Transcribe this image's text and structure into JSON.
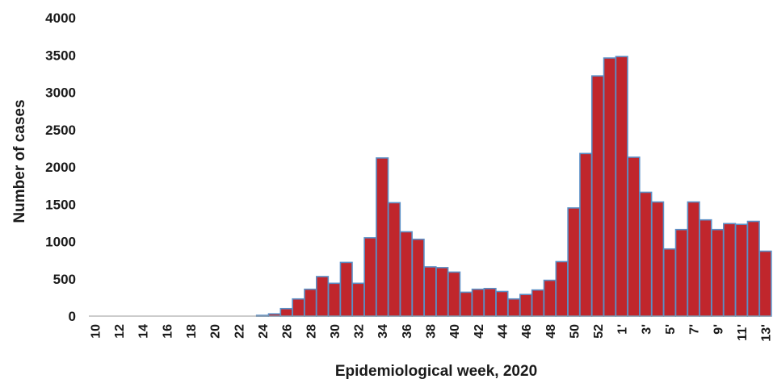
{
  "colors": {
    "bar_fill": "#c0262c",
    "bar_edge": "#5a8fc6",
    "text": "#1a1a1a"
  },
  "chart_data": {
    "type": "bar",
    "title": "",
    "xlabel": "Epidemiological week, 2020",
    "ylabel": "Number of cases",
    "ylim": [
      0,
      4000
    ],
    "yticks": [
      0,
      500,
      1000,
      1500,
      2000,
      2500,
      3000,
      3500,
      4000
    ],
    "grid": false,
    "categories": [
      "10",
      "11",
      "12",
      "13",
      "14",
      "15",
      "16",
      "17",
      "18",
      "19",
      "20",
      "21",
      "22",
      "23",
      "24",
      "25",
      "26",
      "27",
      "28",
      "29",
      "30",
      "31",
      "32",
      "33",
      "34",
      "35",
      "36",
      "37",
      "38",
      "39",
      "40",
      "41",
      "42",
      "43",
      "44",
      "45",
      "46",
      "47",
      "48",
      "49",
      "50",
      "51",
      "52",
      "53",
      "1'",
      "2'",
      "3'",
      "4'",
      "5'",
      "6'",
      "7'",
      "8'",
      "9'",
      "10'",
      "11'",
      "12'",
      "13'"
    ],
    "tick_labels": [
      "10",
      "",
      "12",
      "",
      "14",
      "",
      "16",
      "",
      "18",
      "",
      "20",
      "",
      "22",
      "",
      "24",
      "",
      "26",
      "",
      "28",
      "",
      "30",
      "",
      "32",
      "",
      "34",
      "",
      "36",
      "",
      "38",
      "",
      "40",
      "",
      "42",
      "",
      "44",
      "",
      "46",
      "",
      "48",
      "",
      "50",
      "",
      "52",
      "",
      "1'",
      "",
      "3'",
      "",
      "5'",
      "",
      "7'",
      "",
      "9'",
      "",
      "11'",
      "",
      "13'"
    ],
    "values": [
      0,
      0,
      0,
      0,
      0,
      0,
      0,
      0,
      0,
      0,
      0,
      0,
      0,
      0,
      10,
      30,
      100,
      230,
      360,
      530,
      440,
      720,
      440,
      1050,
      2120,
      1520,
      1130,
      1030,
      660,
      650,
      590,
      320,
      360,
      370,
      330,
      230,
      290,
      350,
      480,
      730,
      1450,
      2180,
      3220,
      3460,
      3480,
      2130,
      1660,
      1530,
      900,
      1160,
      1530,
      1290,
      1160,
      1240,
      1230,
      1270,
      870
    ]
  }
}
